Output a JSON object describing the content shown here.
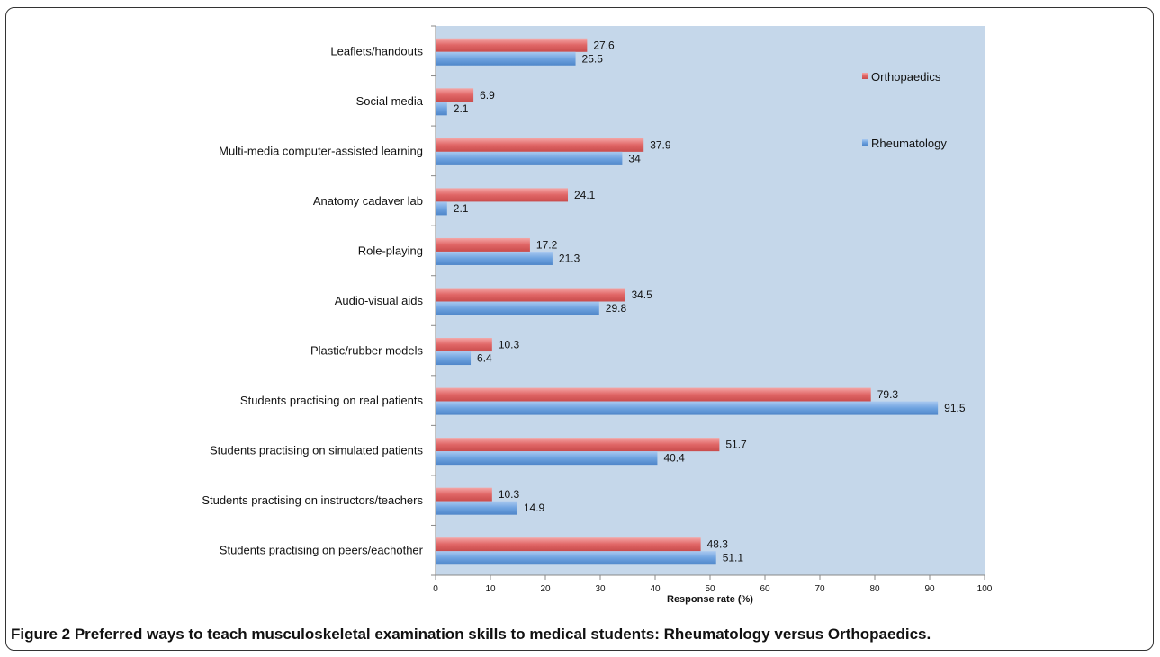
{
  "chart_data": {
    "type": "bar",
    "orientation": "horizontal",
    "categories": [
      "Leaflets/handouts",
      "Social media",
      "Multi-media computer-assisted learning",
      "Anatomy cadaver lab",
      "Role-playing",
      "Audio-visual aids",
      "Plastic/rubber models",
      "Students practising on real patients",
      "Students practising on simulated patients",
      "Students practising on instructors/teachers",
      "Students practising on peers/eachother"
    ],
    "series": [
      {
        "name": "Orthopaedics",
        "color": "#e06666",
        "values": [
          27.6,
          6.9,
          37.9,
          24.1,
          17.2,
          34.5,
          10.3,
          79.3,
          51.7,
          10.3,
          48.3
        ],
        "labels": [
          "27.6",
          "6.9",
          "37.9",
          "24.1",
          "17.2",
          "34.5",
          "10.3",
          "79.3",
          "51.7",
          "10.3",
          "48.3"
        ]
      },
      {
        "name": "Rheumatology",
        "color": "#6fa3e0",
        "values": [
          25.5,
          2.1,
          34,
          2.1,
          21.3,
          29.8,
          6.4,
          91.5,
          40.4,
          14.9,
          51.1
        ],
        "labels": [
          "25.5",
          "2.1",
          "34",
          "2.1",
          "21.3",
          "29.8",
          "6.4",
          "91.5",
          "40.4",
          "14.9",
          "51.1"
        ]
      }
    ],
    "xlabel": "Response rate (%)",
    "ylabel": "",
    "xlim": [
      0,
      100
    ],
    "xticks": [
      "0",
      "10",
      "20",
      "30",
      "40",
      "50",
      "60",
      "70",
      "80",
      "90",
      "100"
    ],
    "grid": false,
    "plot_background": "#c5d7ea",
    "legend_position": "top-right"
  },
  "caption": {
    "label": "Figure 2",
    "text": " Preferred ways to teach musculoskeletal examination skills to medical students: Rheumatology versus Orthopaedics."
  }
}
